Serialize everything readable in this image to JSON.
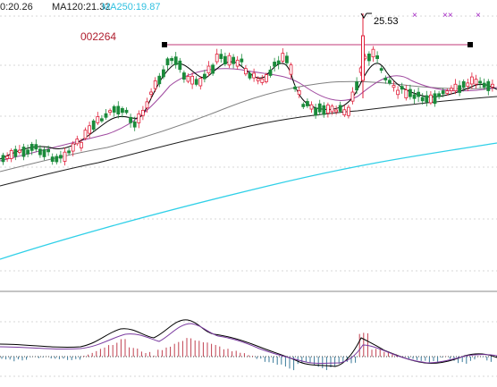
{
  "header": {
    "ma_a": "0:20.26",
    "ma_b": "MA120:21.32",
    "ma_c": "MA250:19.87"
  },
  "stock_code": "002264",
  "peak_label": "25.53",
  "top_marks": [
    "×",
    "××",
    "×"
  ],
  "colors": {
    "background": "#ffffff",
    "up_candle": "#e0203a",
    "down_candle": "#1a8a3a",
    "ma_short": "#000000",
    "ma_mid": "#a04aa0",
    "ma_long": "#707070",
    "ma250": "#30d0e8",
    "resistance_line": "#c03a7a",
    "grid": "#b0b0b0",
    "stock_code_text": "#b02030",
    "header_ma_a": "#222222",
    "header_ma_b": "#222222",
    "header_ma_c": "#30c0e0",
    "marks": "#a020c0",
    "macd_line": "#000000",
    "signal_line": "#7a3aa0",
    "macd_bar": "#c04050"
  },
  "chart_data": {
    "type": "candlestick",
    "panels": [
      "price",
      "macd"
    ],
    "series": [
      {
        "name": "MA120",
        "value": 21.32
      },
      {
        "name": "MA250",
        "value": 19.87
      }
    ]
  }
}
